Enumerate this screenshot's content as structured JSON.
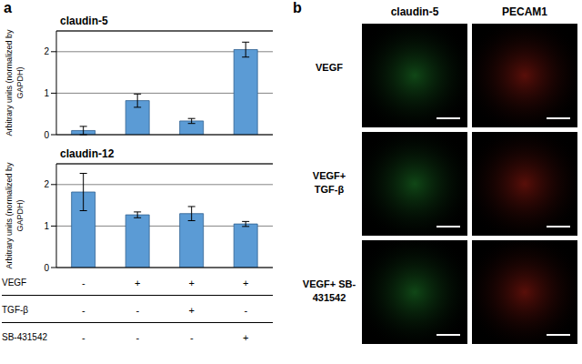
{
  "panel_labels": [
    "a",
    "b"
  ],
  "chart_data": [
    {
      "type": "bar",
      "title": "claudin-5",
      "y_label": "Arbitrary units (normalized by GAPDH)",
      "categories": [
        null,
        null,
        null,
        null
      ],
      "values": [
        0.1,
        0.82,
        0.33,
        2.05
      ],
      "errors": [
        0.1,
        0.16,
        0.06,
        0.18
      ],
      "color": "#5b9bd5",
      "ylim": [
        0,
        2.5
      ],
      "yticks": [
        0,
        1,
        2
      ],
      "grid": true,
      "tick_labels": "y"
    },
    {
      "type": "bar",
      "title": "claudin-12",
      "y_label": "Arbitrary units (normalized by GAPDH)",
      "categories": [
        null,
        null,
        null,
        null
      ],
      "values": [
        1.82,
        1.27,
        1.3,
        1.05
      ],
      "errors": [
        0.45,
        0.07,
        0.17,
        0.06
      ],
      "color": "#5b9bd5",
      "ylim": [
        0,
        2.5
      ],
      "yticks": [
        0,
        1,
        2
      ],
      "grid": true,
      "tick_labels": "y"
    }
  ],
  "conditions": {
    "rows": [
      {
        "label": "VEGF",
        "marks": [
          "-",
          "+",
          "+",
          "+"
        ]
      },
      {
        "label": "TGF-β",
        "marks": [
          "-",
          "-",
          "+",
          "-"
        ]
      },
      {
        "label": "SB-431542",
        "marks": [
          "-",
          "-",
          "-",
          "+"
        ]
      }
    ]
  },
  "images": {
    "columns": [
      {
        "label": "claudin-5",
        "color": "#2ecc40"
      },
      {
        "label": "PECAM1",
        "color": "#ff2a1a"
      }
    ],
    "rows": [
      "VEGF",
      "VEGF+ TGF-β",
      "VEGF+ SB-431542"
    ]
  }
}
